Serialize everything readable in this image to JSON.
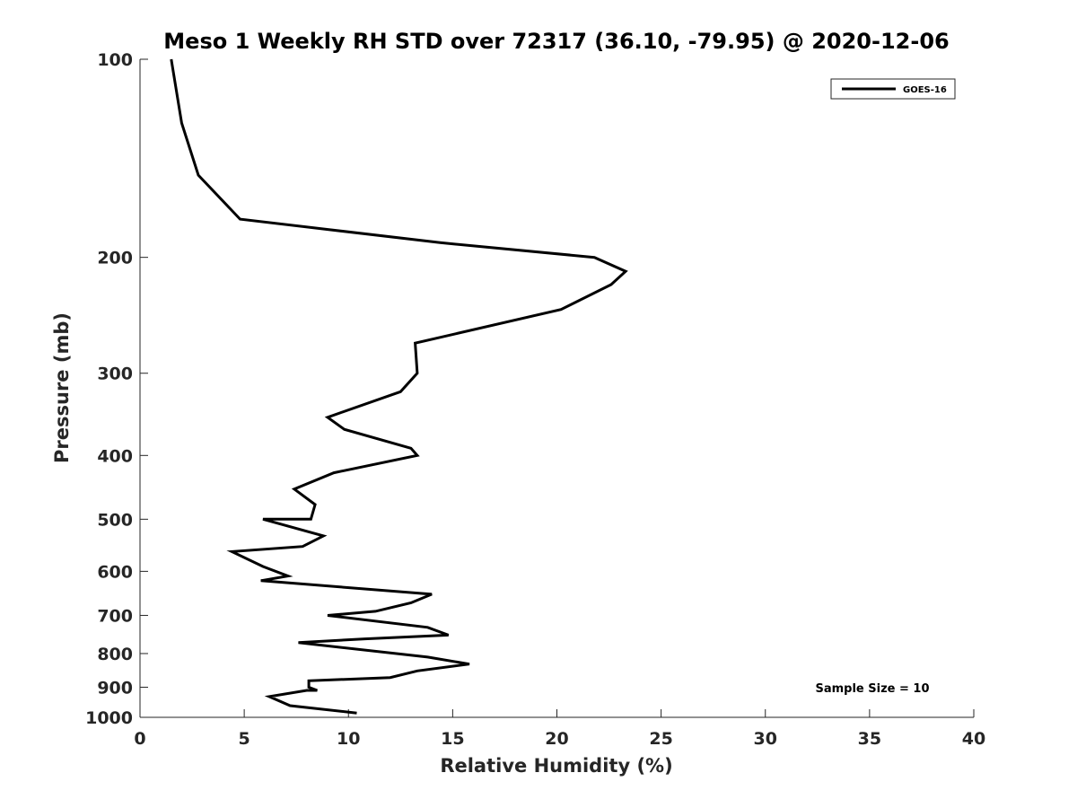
{
  "chart_data": {
    "type": "line",
    "title": "Meso 1 Weekly RH STD over 72317 (36.10, -79.95) @ 2020-12-06",
    "xlabel": "Relative Humidity (%)",
    "ylabel": "Pressure (mb)",
    "xlim": [
      0,
      40
    ],
    "ylim": [
      100,
      1000
    ],
    "y_scale": "log",
    "y_reversed": true,
    "grid": false,
    "legend_position": "top-right",
    "x_ticks": [
      0,
      5,
      10,
      15,
      20,
      25,
      30,
      35,
      40
    ],
    "y_ticks": [
      100,
      200,
      300,
      400,
      500,
      600,
      700,
      800,
      900,
      1000
    ],
    "annotation": "Sample Size = 10",
    "series": [
      {
        "name": "GOES-16",
        "color": "#000000",
        "points": [
          [
            1.5,
            100
          ],
          [
            2.0,
            125
          ],
          [
            2.8,
            150
          ],
          [
            4.8,
            175
          ],
          [
            14.4,
            190
          ],
          [
            21.8,
            200
          ],
          [
            23.3,
            210
          ],
          [
            22.6,
            220
          ],
          [
            20.2,
            240
          ],
          [
            13.2,
            270
          ],
          [
            13.3,
            300
          ],
          [
            12.5,
            320
          ],
          [
            9.0,
            350
          ],
          [
            9.8,
            365
          ],
          [
            13.0,
            390
          ],
          [
            13.3,
            400
          ],
          [
            9.3,
            425
          ],
          [
            7.4,
            450
          ],
          [
            8.4,
            475
          ],
          [
            8.2,
            500
          ],
          [
            5.9,
            500
          ],
          [
            8.8,
            530
          ],
          [
            7.8,
            550
          ],
          [
            4.4,
            560
          ],
          [
            5.9,
            590
          ],
          [
            7.1,
            610
          ],
          [
            5.8,
            620
          ],
          [
            14.0,
            650
          ],
          [
            13.0,
            670
          ],
          [
            11.3,
            690
          ],
          [
            9.0,
            700
          ],
          [
            13.8,
            730
          ],
          [
            14.8,
            750
          ],
          [
            10.8,
            760
          ],
          [
            7.6,
            770
          ],
          [
            13.8,
            810
          ],
          [
            15.8,
            830
          ],
          [
            13.3,
            850
          ],
          [
            12.0,
            870
          ],
          [
            8.1,
            880
          ],
          [
            8.1,
            900
          ],
          [
            8.5,
            910
          ],
          [
            8.0,
            910
          ],
          [
            6.2,
            930
          ],
          [
            7.2,
            960
          ],
          [
            10.4,
            985
          ]
        ]
      }
    ]
  }
}
